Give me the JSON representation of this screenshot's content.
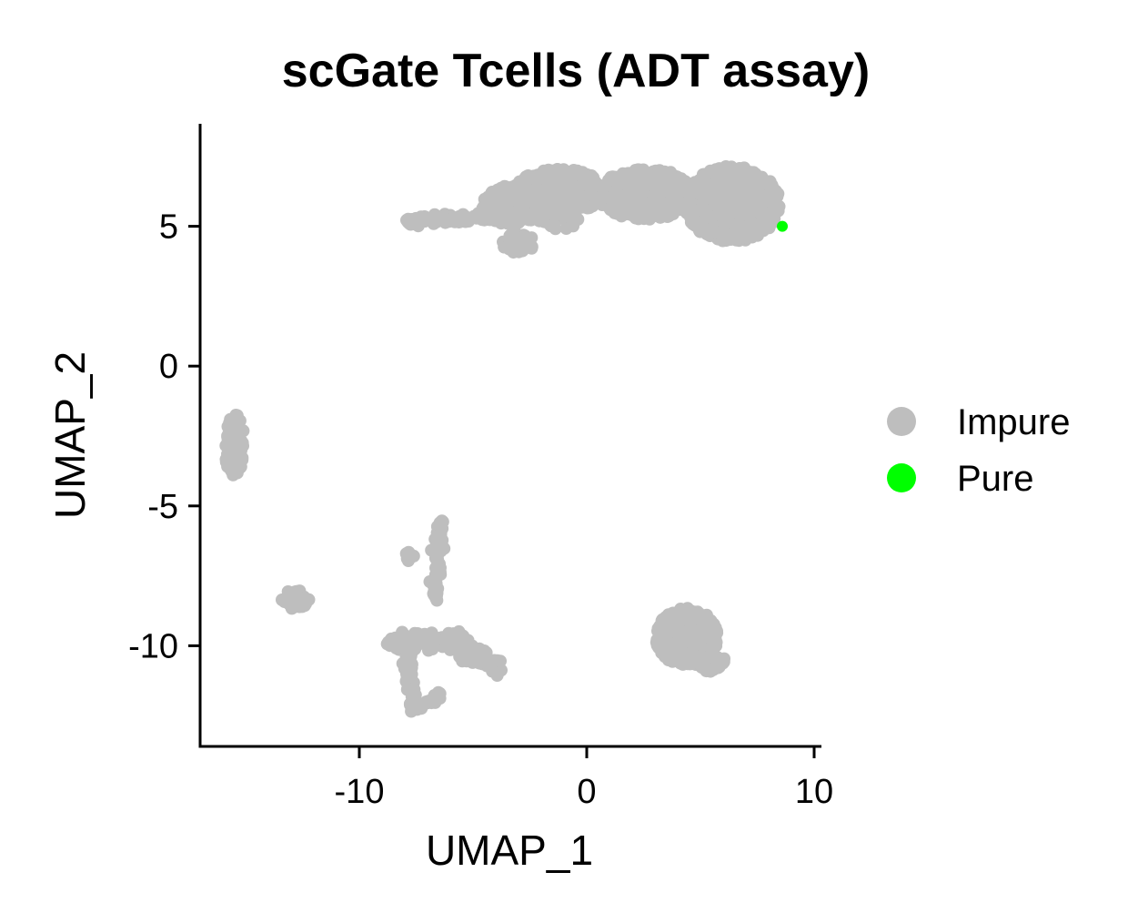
{
  "chart_data": {
    "type": "scatter",
    "title": "scGate Tcells (ADT assay)",
    "xlabel": "UMAP_1",
    "ylabel": "UMAP_2",
    "xlim": [
      -17,
      10.2
    ],
    "ylim": [
      -13.6,
      8.6
    ],
    "xticks": [
      -10,
      0,
      10
    ],
    "yticks": [
      5,
      0,
      -5,
      -10
    ],
    "grid": false,
    "legend_position": "right",
    "series": [
      {
        "name": "Impure",
        "color": "#BEBEBE",
        "clusters": [
          {
            "shape": "ellipse",
            "center": [
              6.4,
              5.8
            ],
            "radius": [
              2.1,
              1.35
            ],
            "count": 700
          },
          {
            "shape": "ellipse",
            "center": [
              2.6,
              6.15
            ],
            "radius": [
              2.2,
              0.9
            ],
            "count": 420
          },
          {
            "shape": "ellipse",
            "center": [
              -1.2,
              6.25
            ],
            "radius": [
              2.0,
              0.8
            ],
            "count": 360
          },
          {
            "shape": "ellipse",
            "center": [
              -3.3,
              5.75
            ],
            "radius": [
              1.3,
              0.7
            ],
            "count": 180
          },
          {
            "shape": "ellipse",
            "center": [
              -3.0,
              4.4
            ],
            "radius": [
              0.7,
              0.35
            ],
            "count": 50
          },
          {
            "shape": "ellipse",
            "center": [
              -1.2,
              5.25
            ],
            "radius": [
              0.9,
              0.35
            ],
            "count": 45
          },
          {
            "shape": "segment",
            "from": [
              -8.0,
              5.15
            ],
            "to": [
              -4.1,
              5.35
            ],
            "width": 0.18,
            "count": 80
          },
          {
            "shape": "ellipse",
            "center": [
              -15.5,
              -2.8
            ],
            "radius": [
              0.45,
              1.1
            ],
            "count": 110
          },
          {
            "shape": "ellipse",
            "center": [
              -12.8,
              -8.35
            ],
            "radius": [
              0.6,
              0.35
            ],
            "count": 45
          },
          {
            "shape": "ellipse",
            "center": [
              4.4,
              -9.7
            ],
            "radius": [
              1.35,
              1.05
            ],
            "count": 420
          },
          {
            "shape": "ellipse",
            "center": [
              5.5,
              -10.6
            ],
            "radius": [
              0.6,
              0.35
            ],
            "count": 40
          },
          {
            "shape": "segment",
            "from": [
              -6.4,
              -5.6
            ],
            "to": [
              -6.7,
              -8.4
            ],
            "width": 0.2,
            "count": 70
          },
          {
            "shape": "ellipse",
            "center": [
              -7.8,
              -6.85
            ],
            "radius": [
              0.2,
              0.2
            ],
            "count": 10
          },
          {
            "shape": "segment",
            "from": [
              -8.7,
              -9.9
            ],
            "to": [
              -5.3,
              -9.8
            ],
            "width": 0.28,
            "count": 140
          },
          {
            "shape": "segment",
            "from": [
              -5.3,
              -10.2
            ],
            "to": [
              -3.9,
              -10.7
            ],
            "width": 0.3,
            "count": 60
          },
          {
            "shape": "segment",
            "from": [
              -7.9,
              -10.3
            ],
            "to": [
              -7.6,
              -12.3
            ],
            "width": 0.22,
            "count": 60
          },
          {
            "shape": "segment",
            "from": [
              -7.5,
              -12.3
            ],
            "to": [
              -6.3,
              -11.6
            ],
            "width": 0.15,
            "count": 25
          },
          {
            "shape": "segment",
            "from": [
              -5.6,
              -9.6
            ],
            "to": [
              -5.2,
              -10.4
            ],
            "width": 0.25,
            "count": 30
          }
        ]
      },
      {
        "name": "Pure",
        "color": "#00FF00",
        "points": [
          [
            8.6,
            5.0
          ]
        ]
      }
    ]
  }
}
